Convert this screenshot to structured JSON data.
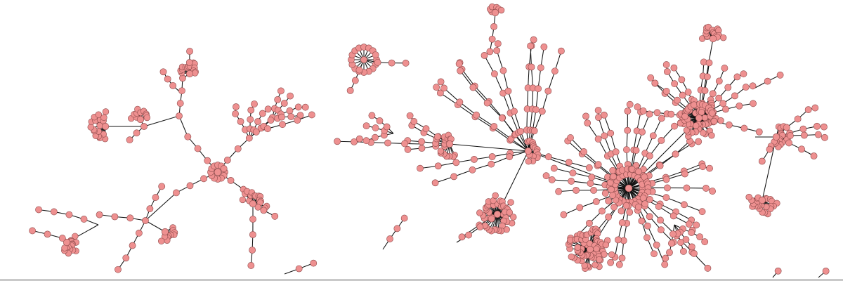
{
  "diagram": {
    "type": "network-graph",
    "node_color": "#ee9090",
    "node_stroke": "#8e4b4b",
    "edge_color": "#111111",
    "background": "#ffffff"
  }
}
